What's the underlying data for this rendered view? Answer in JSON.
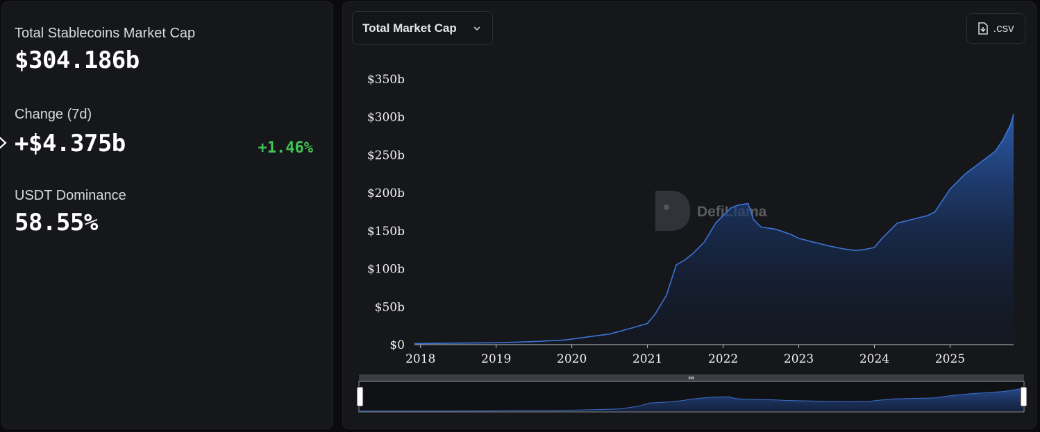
{
  "stats": {
    "total_label": "Total Stablecoins Market Cap",
    "total_value": "$304.186b",
    "change_label": "Change (7d)",
    "change_value": "+$4.375b",
    "change_pct": "+1.46%",
    "dominance_label": "USDT Dominance",
    "dominance_value": "58.55%"
  },
  "controls": {
    "dropdown_label": "Total Market Cap",
    "csv_label": ".csv"
  },
  "watermark": "DefiLlama",
  "colors": {
    "line": "#3b74d6",
    "area_top": "#2d5fb4",
    "positive": "#41c455",
    "panel": "#16171a"
  },
  "chart_data": {
    "type": "area",
    "title": "",
    "xlabel": "",
    "ylabel": "",
    "y_ticks": [
      "$0",
      "$50b",
      "$100b",
      "$150b",
      "$200b",
      "$250b",
      "$300b",
      "$350b"
    ],
    "x_ticks": [
      "2018",
      "2019",
      "2020",
      "2021",
      "2022",
      "2023",
      "2024",
      "2025"
    ],
    "ylim": [
      0,
      350
    ],
    "xlim": [
      2017.92,
      2025.84
    ],
    "series": [
      {
        "x": [
          2017.92,
          2018.5,
          2019.0,
          2019.5,
          2019.9,
          2020.2,
          2020.5,
          2020.8,
          2021.0,
          2021.1,
          2021.25,
          2021.38,
          2021.5,
          2021.6,
          2021.75,
          2021.9,
          2022.0,
          2022.1,
          2022.2,
          2022.33,
          2022.4,
          2022.5,
          2022.7,
          2022.9,
          2023.0,
          2023.2,
          2023.4,
          2023.6,
          2023.75,
          2023.85,
          2024.0,
          2024.1,
          2024.2,
          2024.3,
          2024.5,
          2024.7,
          2024.8,
          2024.9,
          2025.0,
          2025.2,
          2025.4,
          2025.6,
          2025.7,
          2025.8,
          2025.84
        ],
        "y": [
          1.5,
          2,
          2.5,
          4,
          6,
          10,
          14,
          22,
          28,
          40,
          65,
          105,
          112,
          120,
          135,
          160,
          170,
          180,
          184,
          186,
          165,
          155,
          152,
          145,
          140,
          135,
          130,
          126,
          124,
          125,
          128,
          140,
          150,
          160,
          165,
          170,
          175,
          190,
          205,
          225,
          240,
          255,
          270,
          290,
          304
        ]
      }
    ]
  }
}
